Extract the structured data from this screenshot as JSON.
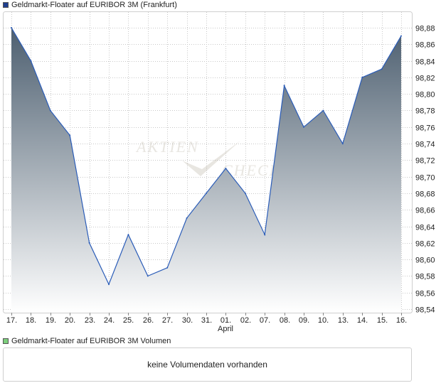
{
  "price_panel": {
    "legend_label": "Geldmarkt-Floater auf EURIBOR 3M (Frankfurt)",
    "legend_color": "#1f3f8f"
  },
  "volume_panel": {
    "legend_label": "Geldmarkt-Floater auf EURIBOR 3M Volumen",
    "legend_color": "#7ccf7c",
    "message": "keine Volumendaten vorhanden"
  },
  "watermark": "AKTIENCHECK",
  "chart_data": {
    "type": "area",
    "categories": [
      "17.",
      "18.",
      "19.",
      "20.",
      "23.",
      "24.",
      "25.",
      "26.",
      "27.",
      "30.",
      "31.",
      "01.",
      "02.",
      "07.",
      "08.",
      "09.",
      "10.",
      "13.",
      "14.",
      "15.",
      "16."
    ],
    "month_label": {
      "text": "April",
      "category": "01."
    },
    "series": [
      {
        "name": "Geldmarkt-Floater auf EURIBOR 3M (Frankfurt)",
        "values": [
          98.88,
          98.84,
          98.78,
          98.75,
          98.62,
          98.57,
          98.63,
          98.58,
          98.59,
          98.65,
          98.68,
          98.71,
          98.68,
          98.63,
          98.81,
          98.76,
          98.78,
          98.74,
          98.82,
          98.83,
          98.87
        ]
      }
    ],
    "y_ticks": [
      "98,54",
      "98,56",
      "98,58",
      "98,60",
      "98,62",
      "98,64",
      "98,66",
      "98,68",
      "98,70",
      "98,72",
      "98,74",
      "98,76",
      "98,78",
      "98,80",
      "98,82",
      "98,84",
      "98,86",
      "98,88"
    ],
    "ylim": [
      98.54,
      98.88
    ],
    "y_axis_position": "right",
    "grid": true,
    "line_color": "#2a5cb8",
    "fill_top_color": "#4d5f70",
    "fill_bottom_color": "#ffffff"
  }
}
